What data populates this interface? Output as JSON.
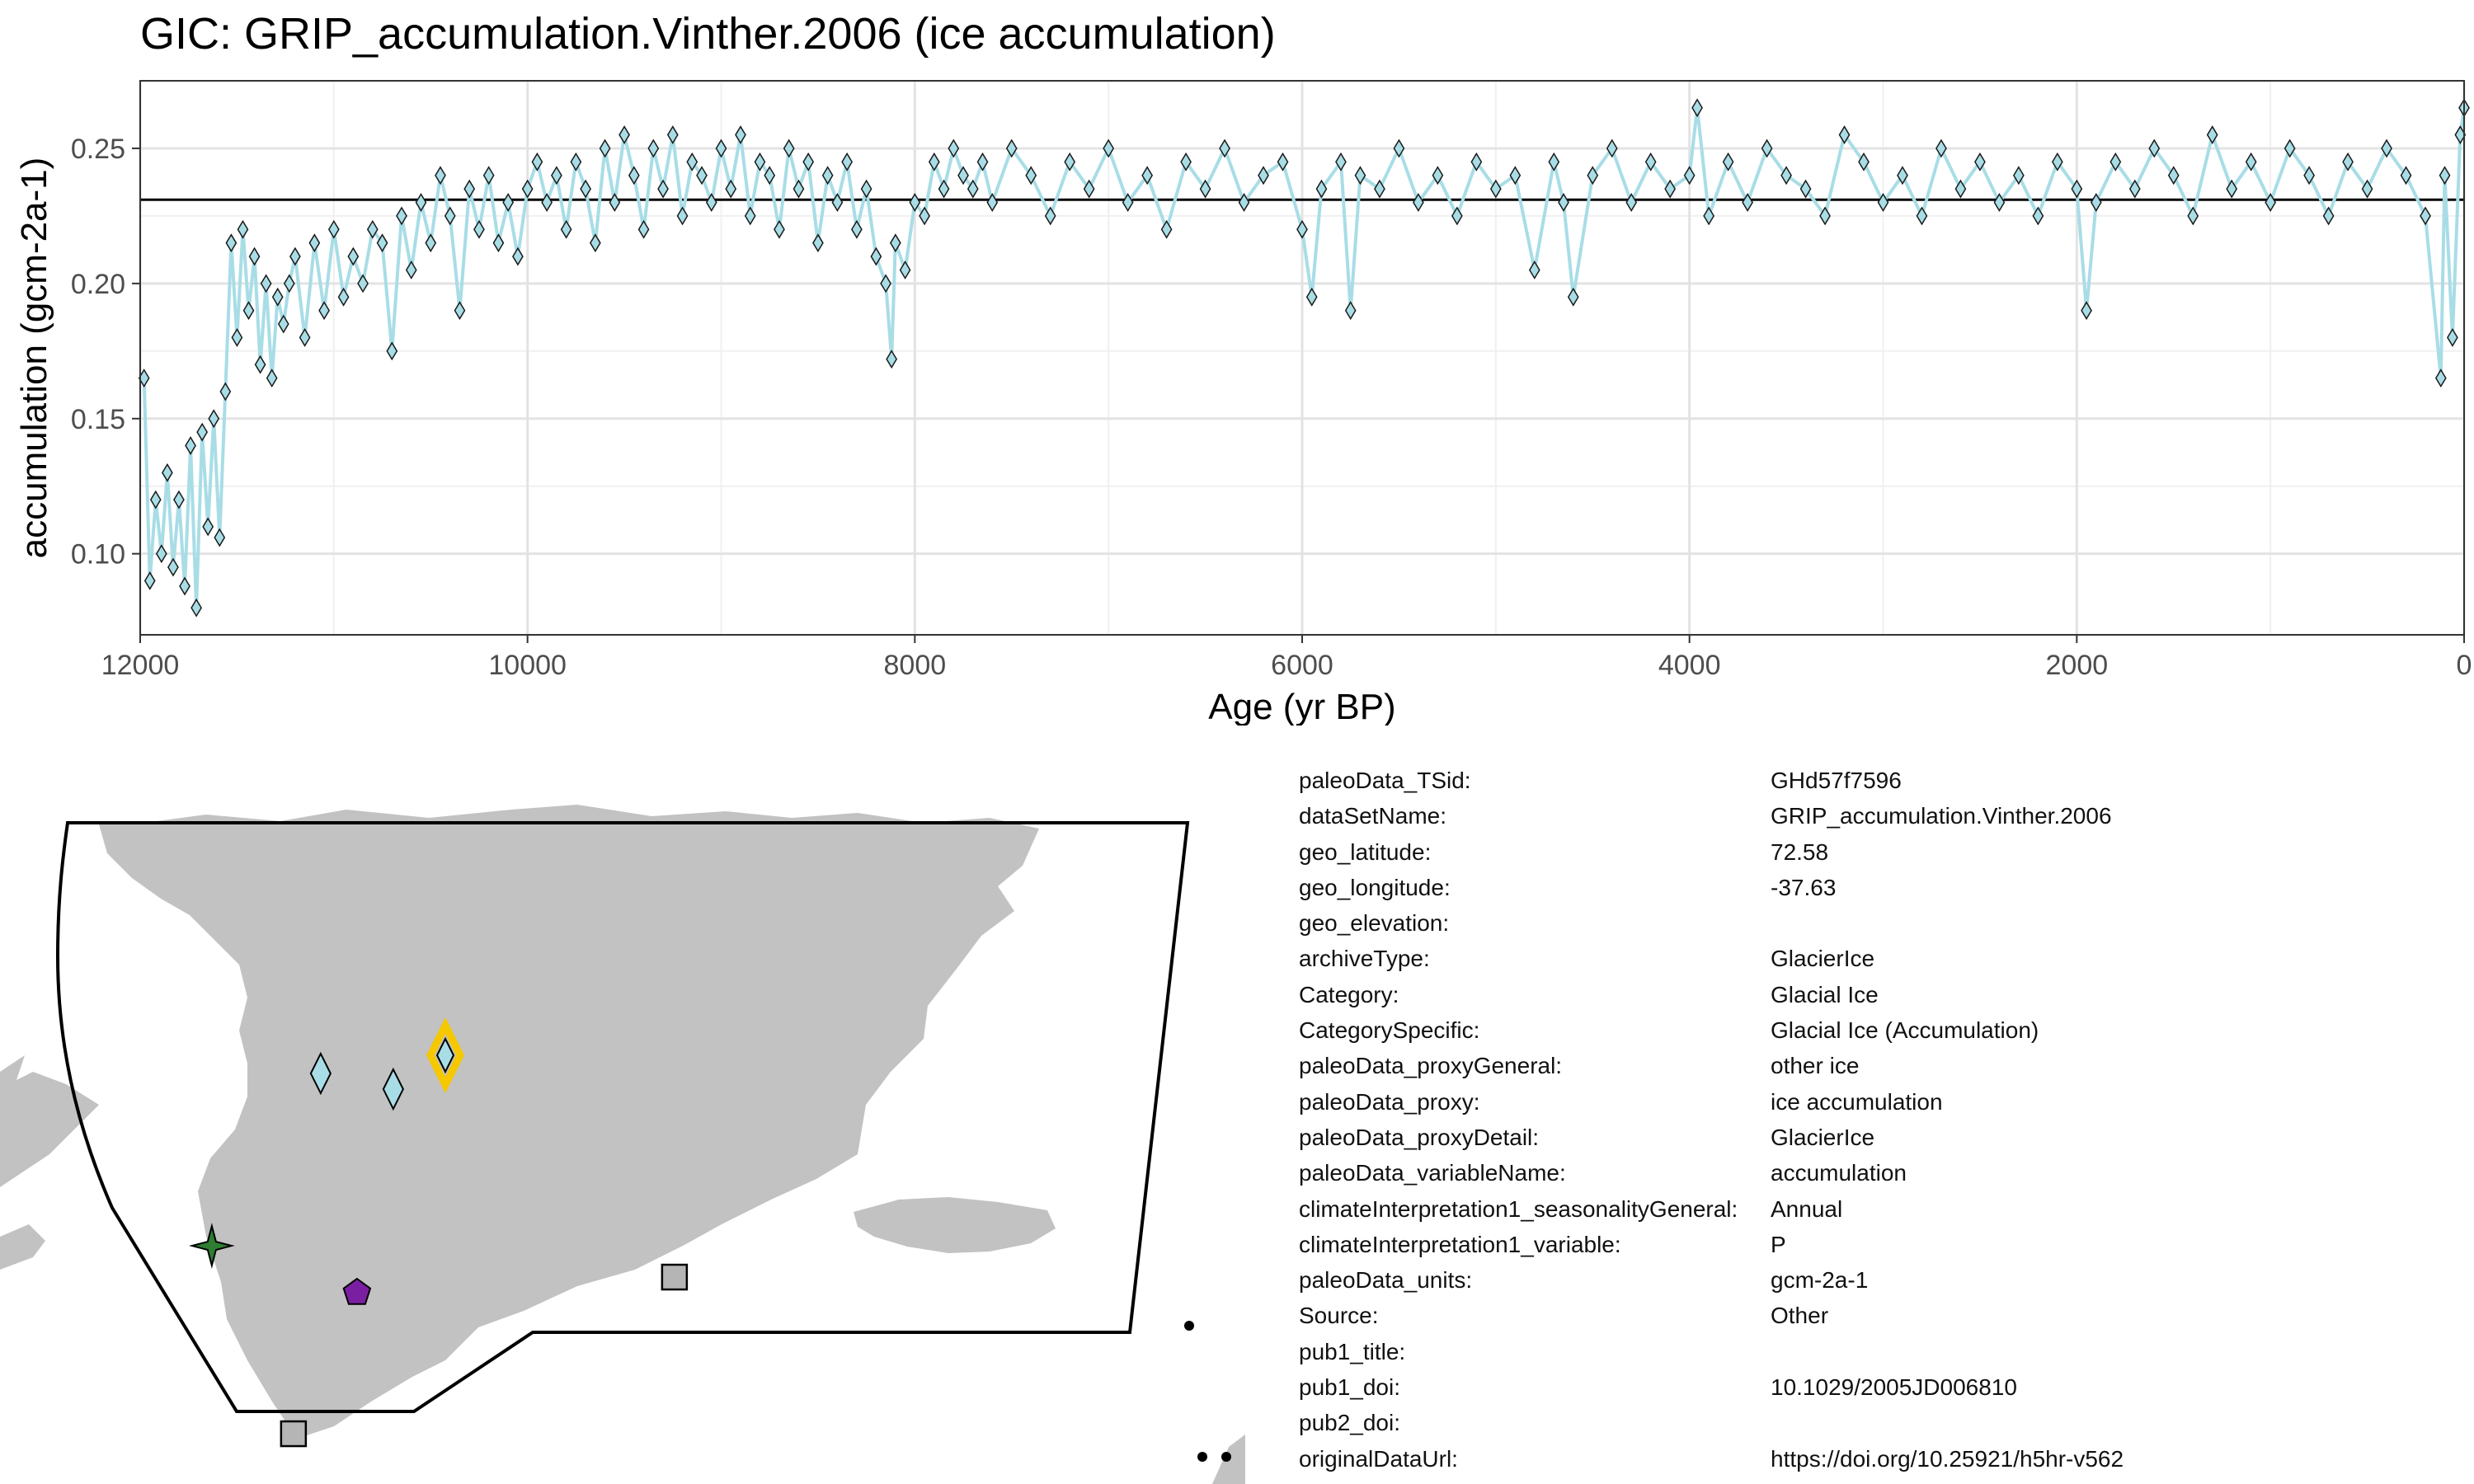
{
  "chart_data": {
    "type": "line",
    "title": "GIC: GRIP_accumulation.Vinther.2006 (ice accumulation)",
    "xlabel": "Age (yr BP)",
    "ylabel": "accumulation (gcm-2a-1)",
    "xlim": [
      12000,
      0
    ],
    "ylim": [
      0.07,
      0.275
    ],
    "x_reversed": true,
    "x_ticks": [
      12000,
      10000,
      8000,
      6000,
      4000,
      2000,
      0
    ],
    "x_tick_labels": [
      "12000",
      "10000",
      "8000",
      "6000",
      "4000",
      "2000",
      "0"
    ],
    "y_ticks": [
      0.1,
      0.15,
      0.2,
      0.25
    ],
    "y_tick_labels": [
      "0.10",
      "0.15",
      "0.20",
      "0.25"
    ],
    "mean_line": 0.231,
    "grid": true,
    "marker": "diamond",
    "series_color": "#a8dde6",
    "series": [
      {
        "x": [
          11980,
          11950,
          11920,
          11890,
          11860,
          11830,
          11800,
          11770,
          11740,
          11710,
          11680,
          11650,
          11620,
          11590,
          11560,
          11530,
          11500,
          11470,
          11440,
          11410,
          11380,
          11350,
          11320,
          11290,
          11260,
          11230,
          11200,
          11150,
          11100,
          11050,
          11000,
          10950,
          10900,
          10850,
          10800,
          10750,
          10700,
          10650,
          10600,
          10550,
          10500,
          10450,
          10400,
          10350,
          10300,
          10250,
          10200,
          10150,
          10100,
          10050,
          10000,
          9950,
          9900,
          9850,
          9800,
          9750,
          9700,
          9650,
          9600,
          9550,
          9500,
          9450,
          9400,
          9350,
          9300,
          9250,
          9200,
          9150,
          9100,
          9050,
          9000,
          8950,
          8900,
          8850,
          8800,
          8750,
          8700,
          8650,
          8600,
          8550,
          8500,
          8450,
          8400,
          8350,
          8300,
          8250,
          8200,
          8150,
          8120,
          8100,
          8050,
          8000,
          7950,
          7900,
          7850,
          7800,
          7750,
          7700,
          7650,
          7600,
          7500,
          7400,
          7300,
          7200,
          7100,
          7000,
          6900,
          6800,
          6700,
          6600,
          6500,
          6400,
          6300,
          6200,
          6100,
          6000,
          5950,
          5900,
          5800,
          5750,
          5700,
          5600,
          5500,
          5400,
          5300,
          5200,
          5100,
          5000,
          4900,
          4800,
          4700,
          4650,
          4600,
          4500,
          4400,
          4300,
          4200,
          4100,
          4000,
          3960,
          3900,
          3800,
          3700,
          3600,
          3500,
          3400,
          3300,
          3200,
          3100,
          3000,
          2900,
          2800,
          2700,
          2600,
          2500,
          2400,
          2300,
          2200,
          2100,
          2000,
          1950,
          1900,
          1800,
          1700,
          1600,
          1500,
          1400,
          1300,
          1200,
          1100,
          1000,
          900,
          800,
          700,
          600,
          500,
          400,
          300,
          200,
          120,
          100,
          60,
          20,
          0
        ],
        "y": [
          0.165,
          0.09,
          0.12,
          0.1,
          0.13,
          0.095,
          0.12,
          0.088,
          0.14,
          0.08,
          0.145,
          0.11,
          0.15,
          0.106,
          0.16,
          0.215,
          0.18,
          0.22,
          0.19,
          0.21,
          0.17,
          0.2,
          0.165,
          0.195,
          0.185,
          0.2,
          0.21,
          0.18,
          0.215,
          0.19,
          0.22,
          0.195,
          0.21,
          0.2,
          0.22,
          0.215,
          0.175,
          0.225,
          0.205,
          0.23,
          0.215,
          0.24,
          0.225,
          0.19,
          0.235,
          0.22,
          0.24,
          0.215,
          0.23,
          0.21,
          0.235,
          0.245,
          0.23,
          0.24,
          0.22,
          0.245,
          0.235,
          0.215,
          0.25,
          0.23,
          0.255,
          0.24,
          0.22,
          0.25,
          0.235,
          0.255,
          0.225,
          0.245,
          0.24,
          0.23,
          0.25,
          0.235,
          0.255,
          0.225,
          0.245,
          0.24,
          0.22,
          0.25,
          0.235,
          0.245,
          0.215,
          0.24,
          0.23,
          0.245,
          0.22,
          0.235,
          0.21,
          0.2,
          0.172,
          0.215,
          0.205,
          0.23,
          0.225,
          0.245,
          0.235,
          0.25,
          0.24,
          0.235,
          0.245,
          0.23,
          0.25,
          0.24,
          0.225,
          0.245,
          0.235,
          0.25,
          0.23,
          0.24,
          0.22,
          0.245,
          0.235,
          0.25,
          0.23,
          0.24,
          0.245,
          0.22,
          0.195,
          0.235,
          0.245,
          0.19,
          0.24,
          0.235,
          0.25,
          0.23,
          0.24,
          0.225,
          0.245,
          0.235,
          0.24,
          0.205,
          0.245,
          0.23,
          0.195,
          0.24,
          0.25,
          0.23,
          0.245,
          0.235,
          0.24,
          0.265,
          0.225,
          0.245,
          0.23,
          0.25,
          0.24,
          0.235,
          0.225,
          0.255,
          0.245,
          0.23,
          0.24,
          0.225,
          0.25,
          0.235,
          0.245,
          0.23,
          0.24,
          0.225,
          0.245,
          0.235,
          0.19,
          0.23,
          0.245,
          0.235,
          0.25,
          0.24,
          0.225,
          0.255,
          0.235,
          0.245,
          0.23,
          0.25,
          0.24,
          0.225,
          0.245,
          0.235,
          0.25,
          0.24,
          0.225,
          0.165,
          0.24,
          0.18,
          0.255,
          0.265
        ]
      }
    ]
  },
  "map": {
    "land_color": "#c2c2c2",
    "markers": [
      {
        "shape": "diamond",
        "color": "#a8dde6",
        "lat": 72.0,
        "lon": -44.5
      },
      {
        "shape": "diamond",
        "color": "#a8dde6",
        "lat": 71.5,
        "lon": -40.5
      },
      {
        "shape": "diamond",
        "color": "#a8dde6",
        "lat": 72.58,
        "lon": -37.63,
        "highlighted": true,
        "highlight_color": "#f5c800"
      },
      {
        "shape": "star",
        "color": "#2e7d32",
        "lat": 66.5,
        "lon": -50.5
      },
      {
        "shape": "pentagon",
        "color": "#7b1fa2",
        "lat": 65.0,
        "lon": -42.5
      },
      {
        "shape": "square",
        "color": "#b5b5b5",
        "lat": 65.5,
        "lon": -25.0
      },
      {
        "shape": "square",
        "color": "#b5b5b5",
        "lat": 60.5,
        "lon": -46.0
      }
    ]
  },
  "metadata": [
    {
      "key": "paleoData_TSid:",
      "value": "GHd57f7596"
    },
    {
      "key": "dataSetName:",
      "value": "GRIP_accumulation.Vinther.2006"
    },
    {
      "key": "geo_latitude:",
      "value": "72.58"
    },
    {
      "key": "geo_longitude:",
      "value": "-37.63"
    },
    {
      "key": "geo_elevation:",
      "value": ""
    },
    {
      "key": "archiveType:",
      "value": "GlacierIce"
    },
    {
      "key": "Category:",
      "value": "Glacial Ice"
    },
    {
      "key": "CategorySpecific:",
      "value": "Glacial Ice (Accumulation)"
    },
    {
      "key": "paleoData_proxyGeneral:",
      "value": "other ice"
    },
    {
      "key": "paleoData_proxy:",
      "value": "ice accumulation"
    },
    {
      "key": "paleoData_proxyDetail:",
      "value": "GlacierIce"
    },
    {
      "key": "paleoData_variableName:",
      "value": "accumulation"
    },
    {
      "key": "climateInterpretation1_seasonalityGeneral:",
      "value": "Annual"
    },
    {
      "key": "climateInterpretation1_variable:",
      "value": "P"
    },
    {
      "key": "paleoData_units:",
      "value": "gcm-2a-1"
    },
    {
      "key": "Source:",
      "value": "Other"
    },
    {
      "key": "pub1_title:",
      "value": ""
    },
    {
      "key": "pub1_doi:",
      "value": "10.1029/2005JD006810"
    },
    {
      "key": "pub2_doi:",
      "value": ""
    },
    {
      "key": "originalDataUrl:",
      "value": "https://doi.org/10.25921/h5hr-v562"
    }
  ]
}
